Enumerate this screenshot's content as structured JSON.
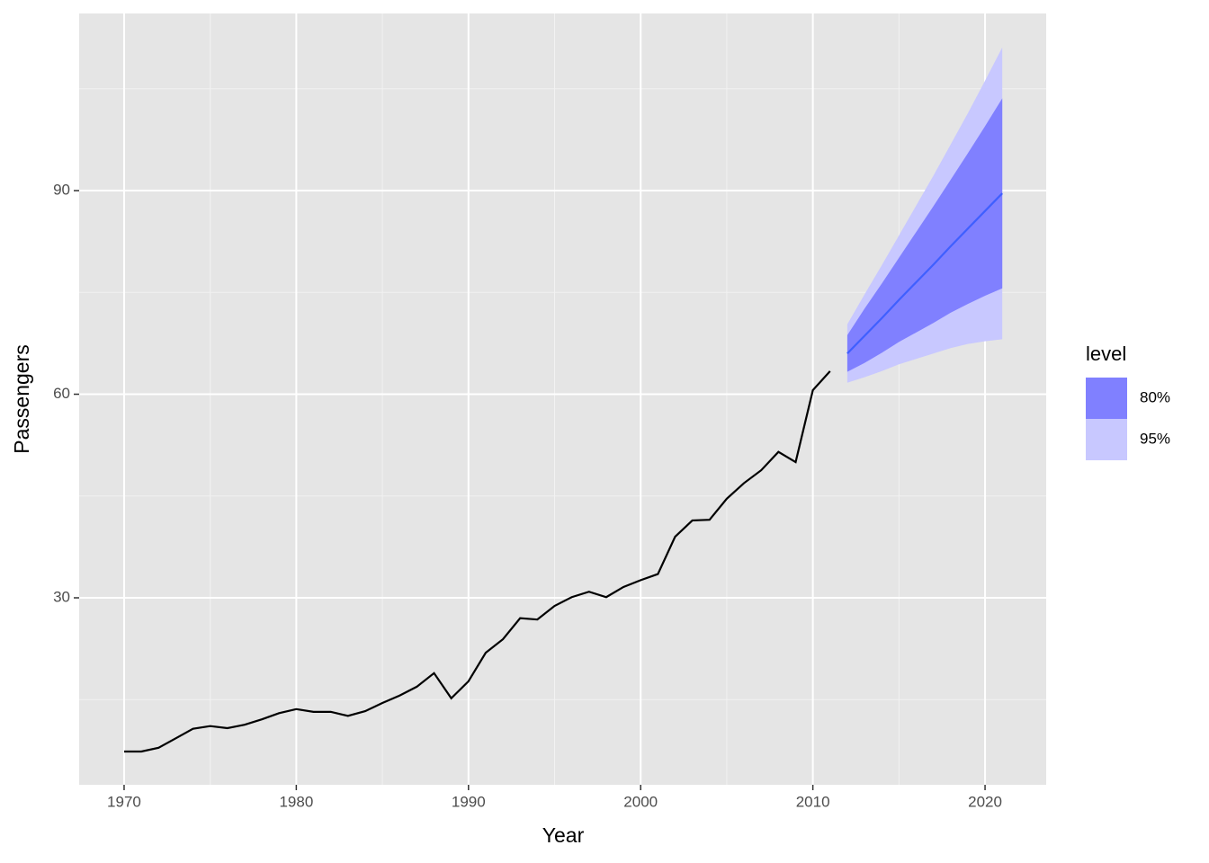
{
  "chart_data": {
    "type": "line",
    "xlabel": "Year",
    "ylabel": "Passengers",
    "xlim": [
      1967.39,
      2023.55
    ],
    "ylim": [
      2.45,
      116.1
    ],
    "xticks": [
      1970,
      1980,
      1990,
      2000,
      2010,
      2020
    ],
    "yticks": [
      30,
      60,
      90
    ],
    "xminorticks": [
      1975,
      1985,
      1995,
      2005,
      2015
    ],
    "yminorticks": [
      15,
      45,
      75,
      105
    ],
    "grid": true,
    "series": [
      {
        "color": "#000000",
        "x": [
          1970,
          1971,
          1972,
          1973,
          1974,
          1975,
          1976,
          1977,
          1978,
          1979,
          1980,
          1981,
          1982,
          1983,
          1984,
          1985,
          1986,
          1987,
          1988,
          1989,
          1990,
          1991,
          1992,
          1993,
          1994,
          1995,
          1996,
          1997,
          1998,
          1999,
          2000,
          2001,
          2002,
          2003,
          2004,
          2005,
          2006,
          2007,
          2008,
          2009,
          2010,
          2011
        ],
        "values": [
          7.35,
          7.35,
          7.9,
          9.3,
          10.7,
          11.1,
          10.8,
          11.3,
          12.1,
          13.0,
          13.6,
          13.2,
          13.2,
          12.6,
          13.3,
          14.5,
          15.6,
          16.9,
          18.9,
          15.2,
          17.7,
          21.9,
          23.9,
          27.0,
          26.8,
          28.8,
          30.1,
          30.9,
          30.1,
          31.6,
          32.6,
          33.5,
          39.0,
          41.4,
          41.5,
          44.6,
          46.9,
          48.8,
          51.5,
          50.0,
          60.6,
          63.4
        ]
      }
    ],
    "forecast": {
      "color": "#3f5fff",
      "x": [
        2012,
        2013,
        2014,
        2015,
        2016,
        2017,
        2018,
        2019,
        2020,
        2021
      ],
      "values": [
        66.0,
        68.6,
        71.2,
        73.9,
        76.5,
        79.1,
        81.8,
        84.4,
        87.0,
        89.6
      ]
    },
    "legend_title": "level",
    "bands": [
      {
        "name": "80%",
        "color": "#8080ff",
        "lower": [
          63.3,
          64.6,
          66.1,
          67.7,
          69.1,
          70.5,
          72.0,
          73.3,
          74.5,
          75.6
        ],
        "upper": [
          68.7,
          72.6,
          76.3,
          80.1,
          83.9,
          87.7,
          91.6,
          95.5,
          99.5,
          103.6
        ]
      },
      {
        "name": "95%",
        "color": "#c8c8ff",
        "lower": [
          61.7,
          62.5,
          63.4,
          64.4,
          65.2,
          66.0,
          66.8,
          67.4,
          67.8,
          68.1
        ],
        "upper": [
          70.3,
          74.7,
          79.0,
          83.4,
          87.8,
          92.2,
          96.8,
          101.4,
          106.2,
          111.1
        ]
      }
    ]
  }
}
